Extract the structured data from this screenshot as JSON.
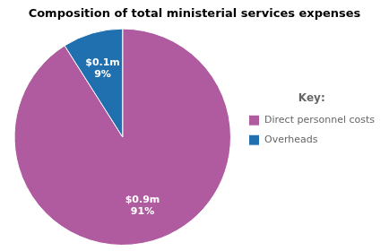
{
  "chart_data": {
    "type": "pie",
    "title": "Composition of total ministerial services expenses",
    "categories": [
      "Direct personnel costs",
      "Overheads"
    ],
    "values": [
      91,
      9
    ],
    "value_labels": [
      "$0.9m\n91%",
      "$0.1m\n9%"
    ],
    "colors": [
      "#b05aa0",
      "#2070b0"
    ],
    "data_labels": true,
    "legend": "right",
    "legend_title": "Key:"
  }
}
